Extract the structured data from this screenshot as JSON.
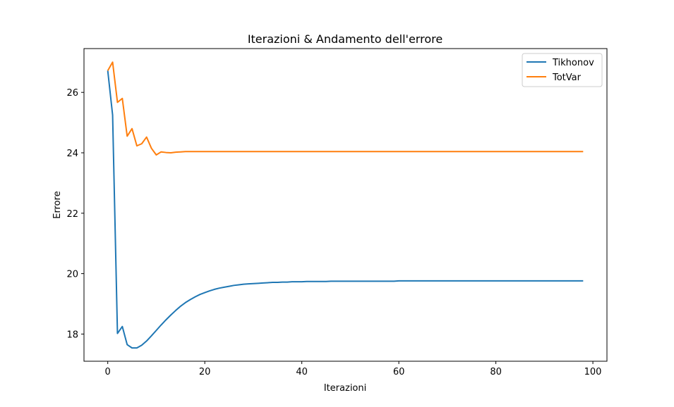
{
  "chart_data": {
    "type": "line",
    "title": "Iterazioni & Andamento dell'errore",
    "xlabel": "Iterazioni",
    "ylabel": "Errore",
    "xlim": [
      -4.9,
      102.9
    ],
    "ylim": [
      17.1,
      27.45
    ],
    "xticks": [
      0,
      20,
      40,
      60,
      80,
      100
    ],
    "yticks": [
      18,
      20,
      22,
      24,
      26
    ],
    "grid": false,
    "legend_position": "top-right",
    "series": [
      {
        "name": "Tikhonov",
        "color": "#1f77b4",
        "x": [
          0,
          1,
          2,
          3,
          4,
          5,
          6,
          7,
          8,
          9,
          10,
          11,
          12,
          13,
          14,
          15,
          16,
          17,
          18,
          19,
          20,
          21,
          22,
          23,
          24,
          25,
          26,
          27,
          28,
          29,
          30,
          31,
          32,
          33,
          34,
          35,
          36,
          37,
          38,
          39,
          40,
          41,
          42,
          43,
          44,
          45,
          46,
          47,
          48,
          49,
          50,
          51,
          52,
          53,
          54,
          55,
          56,
          57,
          58,
          59,
          60,
          61,
          62,
          63,
          64,
          65,
          66,
          67,
          68,
          69,
          70,
          71,
          72,
          73,
          74,
          75,
          76,
          77,
          78,
          79,
          80,
          81,
          82,
          83,
          84,
          85,
          86,
          87,
          88,
          89,
          90,
          91,
          92,
          93,
          94,
          95,
          96,
          97,
          98
        ],
        "y": [
          26.72,
          25.25,
          18.02,
          18.25,
          17.65,
          17.54,
          17.54,
          17.63,
          17.77,
          17.94,
          18.12,
          18.3,
          18.47,
          18.63,
          18.78,
          18.92,
          19.04,
          19.14,
          19.23,
          19.31,
          19.37,
          19.43,
          19.48,
          19.52,
          19.55,
          19.58,
          19.61,
          19.63,
          19.65,
          19.66,
          19.67,
          19.68,
          19.69,
          19.7,
          19.71,
          19.71,
          19.72,
          19.72,
          19.73,
          19.73,
          19.73,
          19.74,
          19.74,
          19.74,
          19.74,
          19.74,
          19.75,
          19.75,
          19.75,
          19.75,
          19.75,
          19.75,
          19.75,
          19.75,
          19.75,
          19.75,
          19.75,
          19.75,
          19.75,
          19.75,
          19.76,
          19.76,
          19.76,
          19.76,
          19.76,
          19.76,
          19.76,
          19.76,
          19.76,
          19.76,
          19.76,
          19.76,
          19.76,
          19.76,
          19.76,
          19.76,
          19.76,
          19.76,
          19.76,
          19.76,
          19.76,
          19.76,
          19.76,
          19.76,
          19.76,
          19.76,
          19.76,
          19.76,
          19.76,
          19.76,
          19.76,
          19.76,
          19.76,
          19.76,
          19.76,
          19.76,
          19.76,
          19.76,
          19.76
        ]
      },
      {
        "name": "TotVar",
        "color": "#ff7f0e",
        "x": [
          0,
          1,
          2,
          3,
          4,
          5,
          6,
          7,
          8,
          9,
          10,
          11,
          12,
          13,
          14,
          15,
          16,
          17,
          18,
          19,
          20,
          21,
          22,
          23,
          24,
          25,
          26,
          27,
          28,
          29,
          30,
          31,
          32,
          33,
          34,
          35,
          36,
          37,
          38,
          39,
          40,
          41,
          42,
          43,
          44,
          45,
          46,
          47,
          48,
          49,
          50,
          51,
          52,
          53,
          54,
          55,
          56,
          57,
          58,
          59,
          60,
          61,
          62,
          63,
          64,
          65,
          66,
          67,
          68,
          69,
          70,
          71,
          72,
          73,
          74,
          75,
          76,
          77,
          78,
          79,
          80,
          81,
          82,
          83,
          84,
          85,
          86,
          87,
          88,
          89,
          90,
          91,
          92,
          93,
          94,
          95,
          96,
          97,
          98
        ],
        "y": [
          26.72,
          27.0,
          25.67,
          25.8,
          24.55,
          24.8,
          24.23,
          24.3,
          24.52,
          24.15,
          23.93,
          24.03,
          24.01,
          24.0,
          24.02,
          24.03,
          24.04,
          24.04,
          24.04,
          24.04,
          24.04,
          24.04,
          24.04,
          24.04,
          24.04,
          24.04,
          24.04,
          24.04,
          24.04,
          24.04,
          24.04,
          24.04,
          24.04,
          24.04,
          24.04,
          24.04,
          24.04,
          24.04,
          24.04,
          24.04,
          24.04,
          24.04,
          24.04,
          24.04,
          24.04,
          24.04,
          24.04,
          24.04,
          24.04,
          24.04,
          24.04,
          24.04,
          24.04,
          24.04,
          24.04,
          24.04,
          24.04,
          24.04,
          24.04,
          24.04,
          24.04,
          24.04,
          24.04,
          24.04,
          24.04,
          24.04,
          24.04,
          24.04,
          24.04,
          24.04,
          24.04,
          24.04,
          24.04,
          24.04,
          24.04,
          24.04,
          24.04,
          24.04,
          24.04,
          24.04,
          24.04,
          24.04,
          24.04,
          24.04,
          24.04,
          24.04,
          24.04,
          24.04,
          24.04,
          24.04,
          24.04,
          24.04,
          24.04,
          24.04,
          24.04,
          24.04,
          24.04,
          24.04,
          24.04
        ]
      }
    ]
  }
}
